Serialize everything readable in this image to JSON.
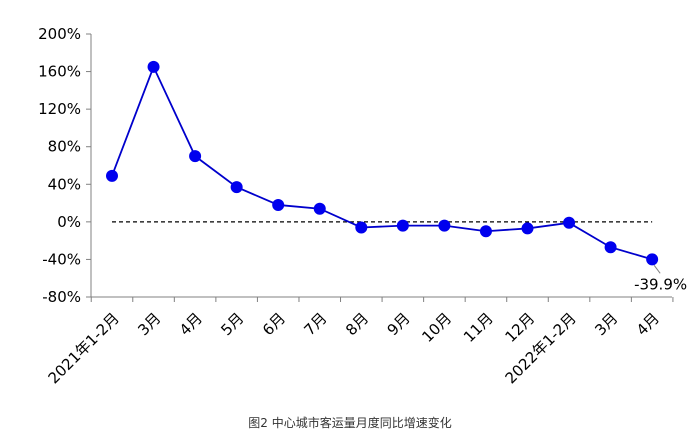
{
  "chart_data": {
    "type": "line",
    "categories": [
      "2021年1-2月",
      "3月",
      "4月",
      "5月",
      "6月",
      "7月",
      "8月",
      "9月",
      "10月",
      "11月",
      "12月",
      "2022年1-2月",
      "3月",
      "4月"
    ],
    "series": [
      {
        "values": [
          49,
          165,
          70,
          37,
          18,
          14,
          -6,
          -4,
          -4,
          -10,
          -7,
          -1,
          -27,
          -39.9
        ]
      }
    ],
    "yticks": [
      "200%",
      "160%",
      "120%",
      "80%",
      "40%",
      "0%",
      "-40%",
      "-80%"
    ],
    "ylim": [
      -80,
      200
    ],
    "ytick_step": 40,
    "reference_line": 0,
    "annotation": "-39.9%",
    "grid": false,
    "colors": {
      "line": "#0000cc",
      "marker": "#0000ee",
      "reference": "#000000",
      "axis": "#808080"
    }
  },
  "caption": "图2   中心城市客运量月度同比增速变化"
}
